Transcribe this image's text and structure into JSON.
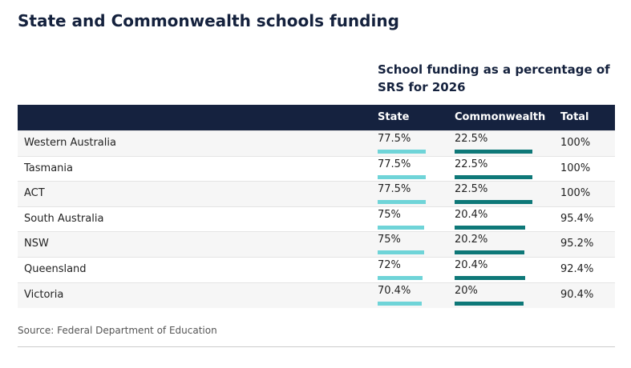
{
  "title": "State and Commonwealth schools funding",
  "table": {
    "group_header": "School funding as a percentage of SRS for 2026",
    "columns": [
      "State",
      "Commonwealth",
      "Total"
    ],
    "rows": [
      "Western Australia",
      "Tasmania",
      "ACT",
      "South Australia",
      "NSW",
      "Queensland",
      "Victoria"
    ],
    "state": {
      "color": "#6fd4d8",
      "values": [
        77.5,
        77.5,
        77.5,
        75,
        75,
        72,
        70.4
      ],
      "value_labels": [
        "77.5%",
        "77.5%",
        "77.5%",
        "75%",
        "75%",
        "72%",
        "70.4%"
      ]
    },
    "commonwealth": {
      "color": "#0e7878",
      "values": [
        22.5,
        22.5,
        22.5,
        20.4,
        20.2,
        20.4,
        20
      ],
      "value_labels": [
        "22.5%",
        "22.5%",
        "22.5%",
        "20.4%",
        "20.2%",
        "20.4%",
        "20%"
      ]
    },
    "total": {
      "labels": [
        "100%",
        "100%",
        "100%",
        "95.4%",
        "95.2%",
        "92.4%",
        "90.4%"
      ]
    }
  },
  "source": "Source: Federal Department of Education"
}
